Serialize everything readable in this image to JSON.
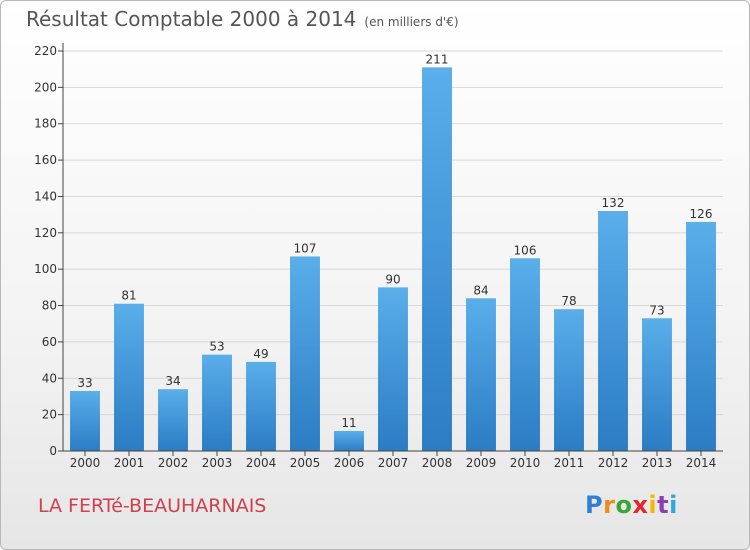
{
  "header": {
    "title": "Résultat Comptable 2000 à 2014",
    "subtitle": "(en milliers d'€)"
  },
  "footer": {
    "commune": "LA FERTé-BEAUHARNAIS",
    "logo": [
      "P",
      "r",
      "o",
      "x",
      "i",
      "t",
      "i"
    ]
  },
  "colors": {
    "bar_top": "#5aaeea",
    "bar_bottom": "#2b7cc4",
    "grid": "#d8d8d8",
    "text": "#333333"
  },
  "chart_data": {
    "type": "bar",
    "title": "Résultat Comptable 2000 à 2014",
    "ylabel": "en milliers d'€",
    "xlabel": "",
    "categories": [
      "2000",
      "2001",
      "2002",
      "2003",
      "2004",
      "2005",
      "2006",
      "2007",
      "2008",
      "2009",
      "2010",
      "2011",
      "2012",
      "2013",
      "2014"
    ],
    "values": [
      33,
      81,
      34,
      53,
      49,
      107,
      11,
      90,
      211,
      84,
      106,
      78,
      132,
      73,
      126
    ],
    "ylim": [
      0,
      220
    ],
    "yticks": [
      0,
      20,
      40,
      60,
      80,
      100,
      120,
      140,
      160,
      180,
      200,
      220
    ],
    "grid": true
  }
}
